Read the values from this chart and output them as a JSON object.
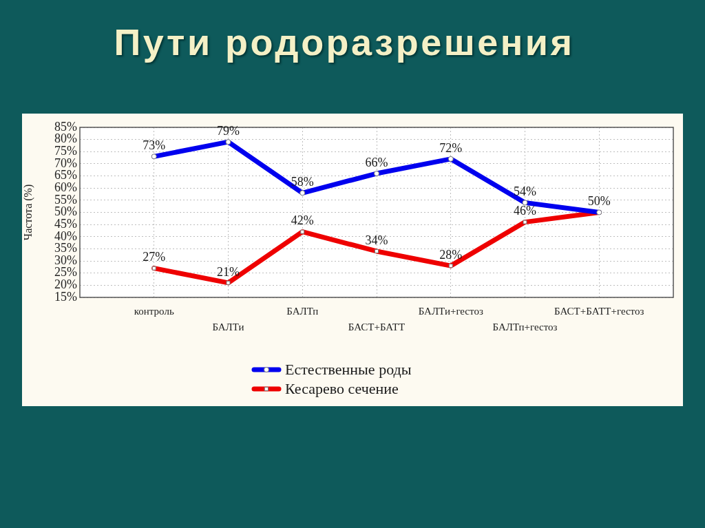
{
  "chart_data": {
    "type": "line",
    "title": "Пути родоразрешения",
    "ylabel": "Частота (%)",
    "categories": [
      "контроль",
      "БАЛТи",
      "БАЛТп",
      "БАСТ+БАТТ",
      "БАЛТи+гестоз",
      "БАЛТп+гестоз",
      "БАСТ+БАТТ+гестоз"
    ],
    "series": [
      {
        "name": "Естественные роды",
        "color": "#0000ee",
        "marker": "circle",
        "values": [
          73,
          79,
          58,
          66,
          72,
          54,
          50
        ],
        "value_labels": [
          "73%",
          "79%",
          "58%",
          "66%",
          "72%",
          "54%",
          "50%"
        ]
      },
      {
        "name": "Кесарево сечение",
        "color": "#ee0000",
        "marker": "square",
        "values": [
          27,
          21,
          42,
          34,
          28,
          46,
          50
        ],
        "value_labels": [
          "27%",
          "21%",
          "42%",
          "34%",
          "28%",
          "46%",
          null
        ]
      }
    ],
    "ylim": [
      15,
      85
    ],
    "yticks": [
      {
        "value": 15,
        "label": "15%"
      },
      {
        "value": 20,
        "label": "20%"
      },
      {
        "value": 25,
        "label": "25%"
      },
      {
        "value": 30,
        "label": "30%"
      },
      {
        "value": 35,
        "label": "35%"
      },
      {
        "value": 40,
        "label": "40%"
      },
      {
        "value": 45,
        "label": "45%"
      },
      {
        "value": 50,
        "label": "50%"
      },
      {
        "value": 55,
        "label": "55%"
      },
      {
        "value": 60,
        "label": "60%"
      },
      {
        "value": 65,
        "label": "65%"
      },
      {
        "value": 70,
        "label": "70%"
      },
      {
        "value": 75,
        "label": "75%"
      },
      {
        "value": 80,
        "label": "80%"
      },
      {
        "value": 85,
        "label": "85%"
      }
    ],
    "grid": true,
    "legend": "bottom"
  }
}
